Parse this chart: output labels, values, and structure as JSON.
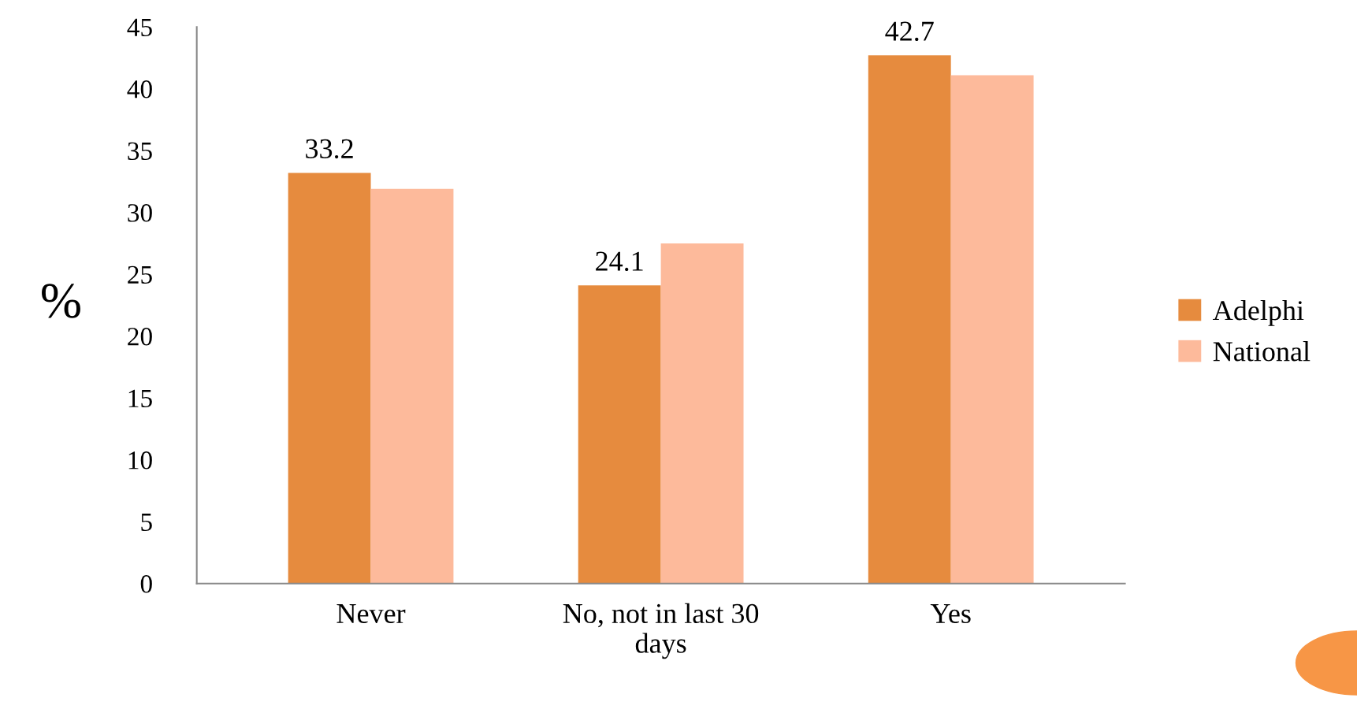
{
  "chart_data": {
    "type": "bar",
    "ylabel": "%",
    "categories": [
      "Never",
      "No, not in last 30\ndays",
      "Yes"
    ],
    "series": [
      {
        "name": "Adelphi",
        "color": "#e68b3e",
        "values": [
          33.2,
          24.1,
          42.7
        ],
        "value_labels": [
          "33.2",
          "24.1",
          "42.7"
        ]
      },
      {
        "name": "National",
        "color": "#fdba9b",
        "values": [
          31.9,
          27.5,
          41.1
        ]
      }
    ],
    "ylim": [
      0,
      45
    ],
    "yticks": [
      0,
      5,
      10,
      15,
      20,
      25,
      30,
      35,
      40,
      45
    ],
    "grid": false,
    "legend": "right"
  }
}
